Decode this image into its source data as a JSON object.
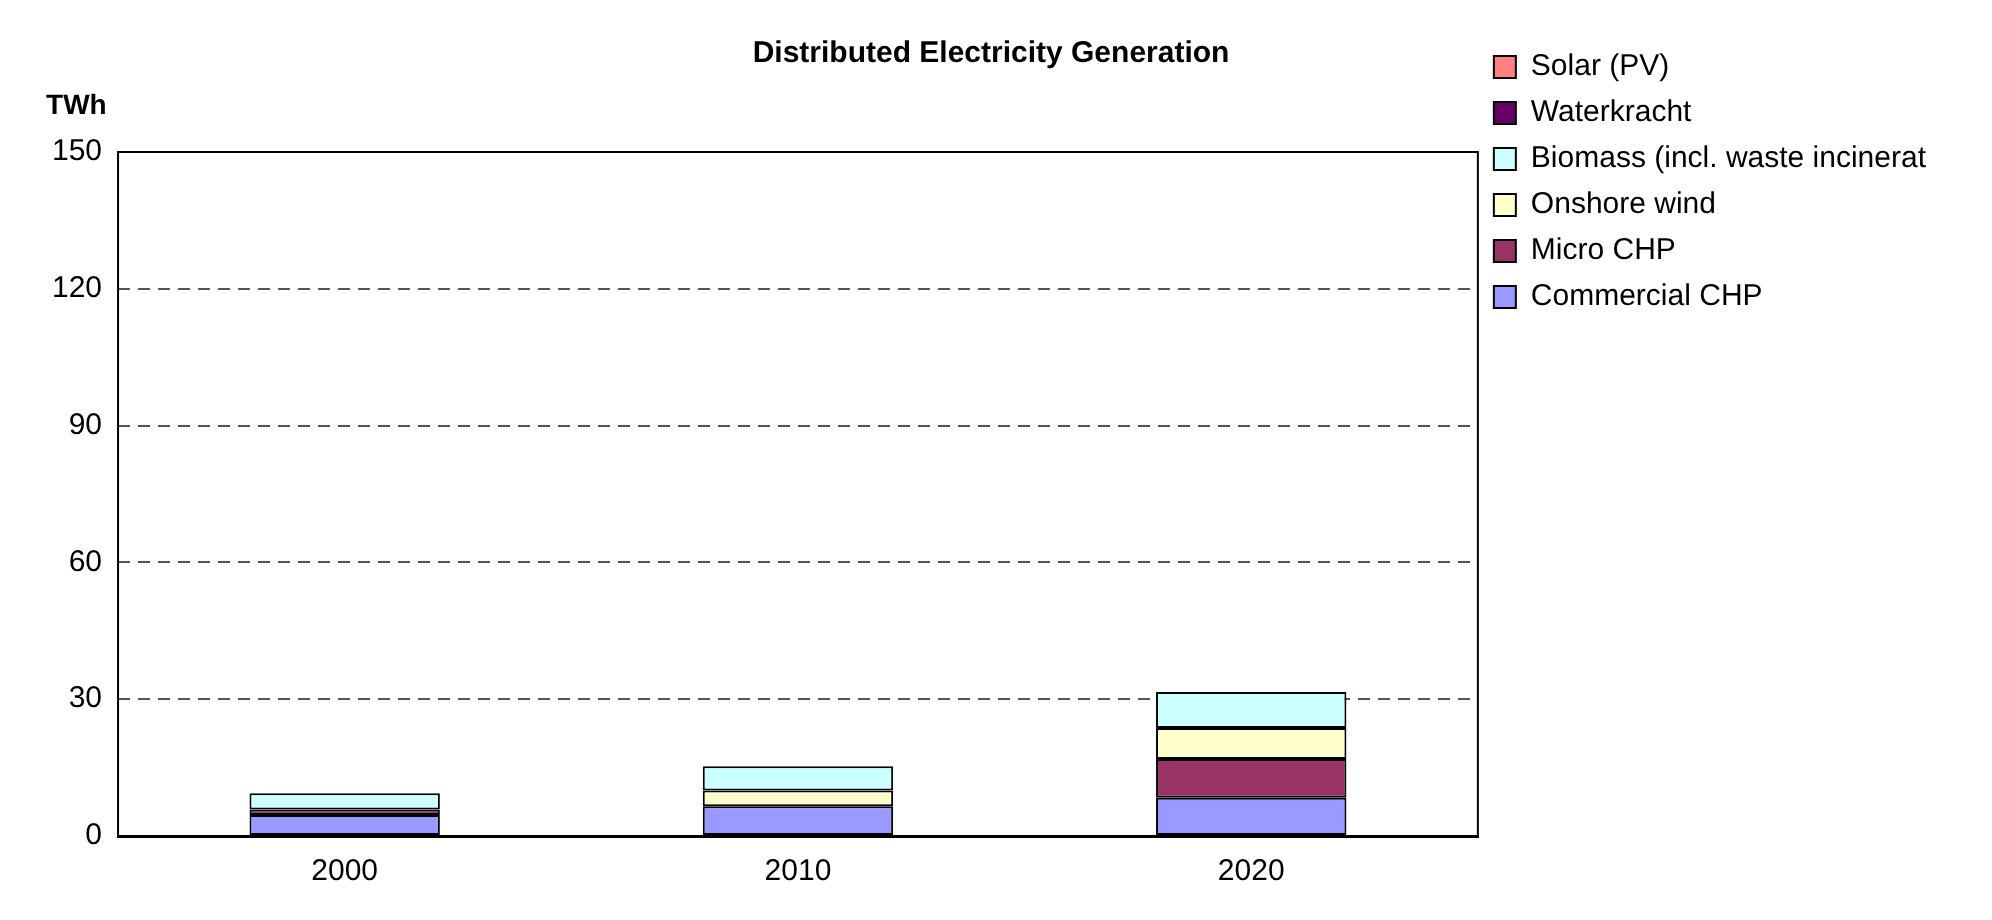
{
  "chart_data": {
    "type": "bar",
    "title": "Distributed Electricity Generation",
    "ylabel": "TWh",
    "categories": [
      "2000",
      "2010",
      "2020"
    ],
    "stacked": true,
    "series": [
      {
        "name": "Commercial CHP",
        "color": "#9999ff",
        "values": [
          4.6,
          6.5,
          8.4
        ]
      },
      {
        "name": "Micro CHP",
        "color": "#993366",
        "values": [
          1.2,
          null,
          8.5
        ]
      },
      {
        "name": "Onshore wind",
        "color": "#ffffcc",
        "values": [
          null,
          3.5,
          6.8
        ]
      },
      {
        "name": "Biomass (incl. waste incinerat",
        "color": "#ccffff",
        "values": [
          3.6,
          5.3,
          7.9
        ]
      },
      {
        "name": "Waterkracht",
        "color": "#660066",
        "values": [
          null,
          null,
          null
        ]
      },
      {
        "name": "Solar (PV)",
        "color": "#ff8080",
        "values": [
          null,
          null,
          null
        ]
      }
    ],
    "ylim": [
      0,
      150
    ],
    "yticks": [
      0,
      30,
      60,
      90,
      120,
      150
    ],
    "grid": "y",
    "legend": "right"
  }
}
